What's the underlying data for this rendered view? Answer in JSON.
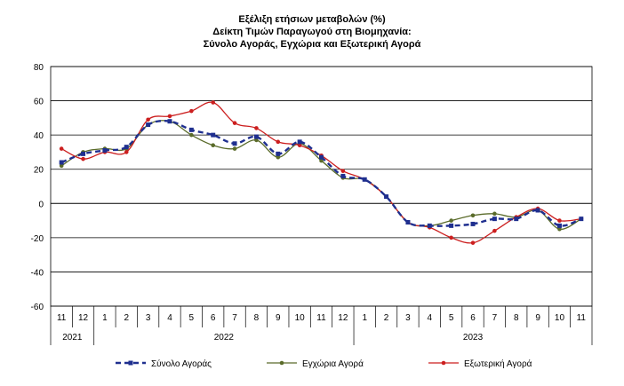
{
  "chart_data": {
    "type": "line",
    "title_lines": [
      "Εξέλιξη ετήσιων μεταβολών (%)",
      "Δείκτη Τιμών Παραγωγού στη Βιομηχανία:",
      "Σύνολο Αγοράς, Εγχώρια και Εξωτερική Αγορά"
    ],
    "ylim": [
      -60,
      80
    ],
    "yticks": [
      80,
      60,
      40,
      20,
      0,
      -20,
      -40,
      -60
    ],
    "grid": true,
    "categories": [
      "11",
      "12",
      "1",
      "2",
      "3",
      "4",
      "5",
      "6",
      "7",
      "8",
      "9",
      "10",
      "11",
      "12",
      "1",
      "2",
      "3",
      "4",
      "5",
      "6",
      "7",
      "8",
      "9",
      "10",
      "11"
    ],
    "year_groups": [
      {
        "label": "2021",
        "start": 0,
        "end": 1
      },
      {
        "label": "2022",
        "start": 2,
        "end": 13
      },
      {
        "label": "2023",
        "start": 14,
        "end": 24
      }
    ],
    "legend_position": "bottom",
    "series": [
      {
        "name": "Σύνολο Αγοράς",
        "color": "#1f2f8f",
        "style": "dashed",
        "marker": "square",
        "values": [
          24,
          29,
          31,
          33,
          46,
          48,
          43,
          40,
          35,
          39,
          29,
          36,
          27,
          16,
          14,
          4,
          -11,
          -13,
          -13,
          -12,
          -9,
          -9,
          -4,
          -13,
          -9
        ]
      },
      {
        "name": "Εγχώρια Αγορά",
        "color": "#5a6b2a",
        "style": "solid",
        "marker": "circle",
        "values": [
          22,
          30,
          32,
          32,
          46,
          48,
          40,
          34,
          32,
          37,
          27,
          35,
          25,
          15,
          14,
          4,
          -11,
          -13,
          -10,
          -7,
          -6,
          -8,
          -4,
          -15,
          -9
        ]
      },
      {
        "name": "Εξωτερική Αγορά",
        "color": "#cc1f1f",
        "style": "solid",
        "marker": "circle",
        "values": [
          32,
          26,
          30,
          30,
          49,
          51,
          54,
          59,
          47,
          44,
          36,
          34,
          28,
          19,
          14,
          4,
          -11,
          -14,
          -20,
          -23,
          -16,
          -8,
          -3,
          -10,
          -9
        ]
      }
    ]
  }
}
